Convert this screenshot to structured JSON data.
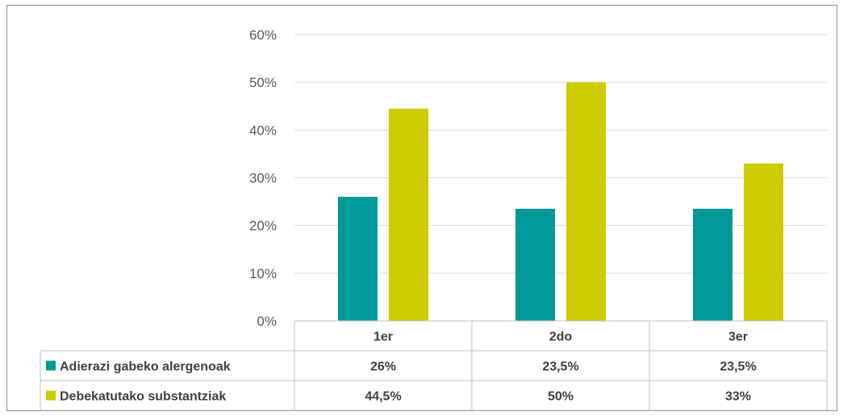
{
  "chart_data": {
    "type": "bar",
    "categories": [
      "1er",
      "2do",
      "3er"
    ],
    "series": [
      {
        "name": "Adierazi gabeko alergenoak",
        "values": [
          26,
          23.5,
          23.5
        ],
        "labels": [
          "26%",
          "23,5%",
          "23,5%"
        ],
        "color": "#009999"
      },
      {
        "name": "Debekatutako substantziak",
        "values": [
          44.5,
          50,
          33
        ],
        "labels": [
          "44,5%",
          "50%",
          "33%"
        ],
        "color": "#cccc00"
      }
    ],
    "yticks": [
      "0%",
      "10%",
      "20%",
      "30%",
      "40%",
      "50%",
      "60%"
    ],
    "ylim": [
      0,
      60
    ],
    "grid": true,
    "legend": "data-table-left",
    "xlabel": "",
    "ylabel": ""
  }
}
